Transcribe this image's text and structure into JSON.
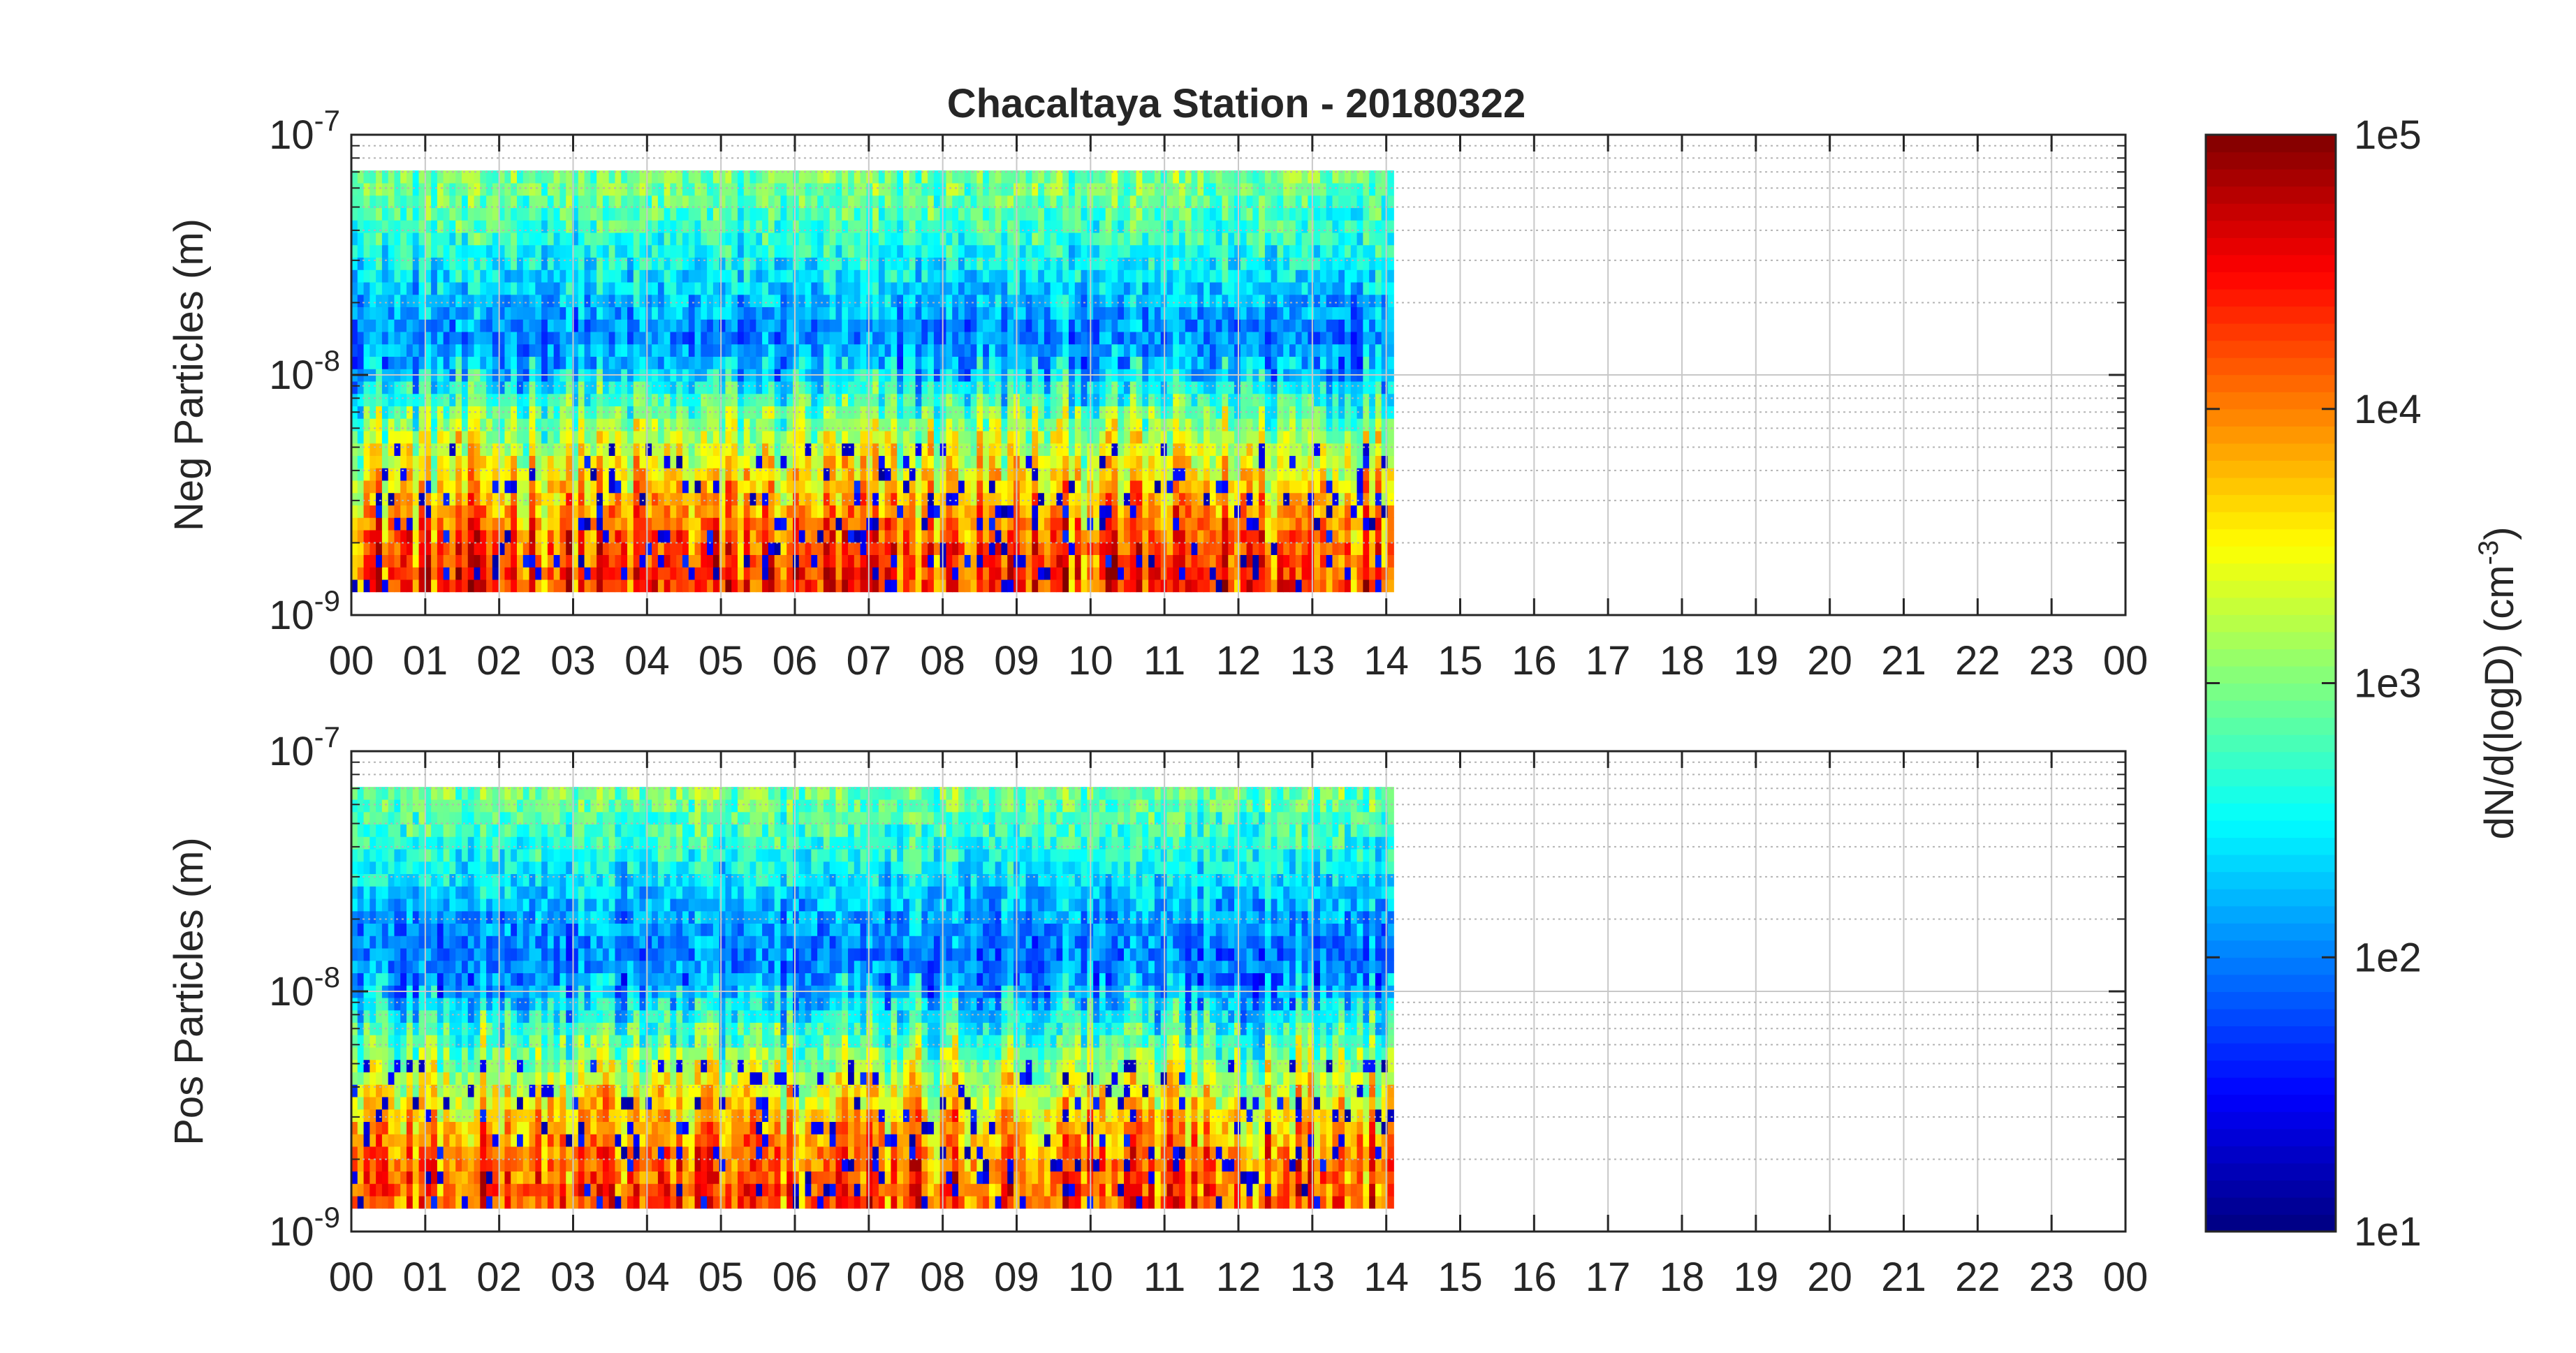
{
  "figure": {
    "title": "Chacaltaya Station - 20180322"
  },
  "colors": {
    "background": "#ffffff",
    "axis": "#262626",
    "grid_major": "#c8c8c8",
    "grid_minor": "#b4b4b4",
    "colormap": "jet"
  },
  "chart_data": [
    {
      "type": "heatmap",
      "ylabel": "Neg Particles (m)",
      "xlabel": "",
      "x_tick_labels": [
        "00",
        "01",
        "02",
        "03",
        "04",
        "05",
        "06",
        "07",
        "08",
        "09",
        "10",
        "11",
        "12",
        "13",
        "14",
        "15",
        "16",
        "17",
        "18",
        "19",
        "20",
        "21",
        "22",
        "23",
        "00"
      ],
      "xlim_hours": [
        0,
        24
      ],
      "data_extent_hours": [
        0,
        14.1
      ],
      "yscale": "log",
      "ylim_m": [
        1e-09,
        1e-07
      ],
      "data_extent_m": [
        1.25e-09,
        7.1e-08
      ],
      "y_tick_labels": [
        {
          "base": "10",
          "exp": "-7"
        },
        {
          "base": "10",
          "exp": "-8"
        },
        {
          "base": "10",
          "exp": "-9"
        }
      ],
      "grid": true,
      "description_profile_log10": [
        {
          "diameter_m": 1.4e-09,
          "dNdlogD": 20000
        },
        {
          "diameter_m": 2e-09,
          "dNdlogD": 15000
        },
        {
          "diameter_m": 3e-09,
          "dNdlogD": 6000
        },
        {
          "diameter_m": 4.5e-09,
          "dNdlogD": 2500
        },
        {
          "diameter_m": 7e-09,
          "dNdlogD": 800
        },
        {
          "diameter_m": 1e-08,
          "dNdlogD": 200
        },
        {
          "diameter_m": 1.5e-08,
          "dNdlogD": 100
        },
        {
          "diameter_m": 2.5e-08,
          "dNdlogD": 250
        },
        {
          "diameter_m": 4e-08,
          "dNdlogD": 500
        },
        {
          "diameter_m": 6.5e-08,
          "dNdlogD": 900
        }
      ]
    },
    {
      "type": "heatmap",
      "ylabel": "Pos Particles (m)",
      "xlabel": "",
      "x_tick_labels": [
        "00",
        "01",
        "02",
        "03",
        "04",
        "05",
        "06",
        "07",
        "08",
        "09",
        "10",
        "11",
        "12",
        "13",
        "14",
        "15",
        "16",
        "17",
        "18",
        "19",
        "20",
        "21",
        "22",
        "23",
        "00"
      ],
      "xlim_hours": [
        0,
        24
      ],
      "data_extent_hours": [
        0,
        14.1
      ],
      "yscale": "log",
      "ylim_m": [
        1e-09,
        1e-07
      ],
      "data_extent_m": [
        1.25e-09,
        7.1e-08
      ],
      "y_tick_labels": [
        {
          "base": "10",
          "exp": "-7"
        },
        {
          "base": "10",
          "exp": "-8"
        },
        {
          "base": "10",
          "exp": "-9"
        }
      ],
      "grid": true,
      "description_profile_log10": [
        {
          "diameter_m": 1.4e-09,
          "dNdlogD": 15000
        },
        {
          "diameter_m": 2e-09,
          "dNdlogD": 12000
        },
        {
          "diameter_m": 3e-09,
          "dNdlogD": 5000
        },
        {
          "diameter_m": 4.5e-09,
          "dNdlogD": 1800
        },
        {
          "diameter_m": 7e-09,
          "dNdlogD": 500
        },
        {
          "diameter_m": 1e-08,
          "dNdlogD": 150
        },
        {
          "diameter_m": 1.5e-08,
          "dNdlogD": 90
        },
        {
          "diameter_m": 2.5e-08,
          "dNdlogD": 200
        },
        {
          "diameter_m": 4e-08,
          "dNdlogD": 450
        },
        {
          "diameter_m": 6.5e-08,
          "dNdlogD": 850
        }
      ]
    }
  ],
  "colorbar": {
    "label": "dN/d(logD) (cm",
    "label_exp": "-3",
    "label_close": ")",
    "scale": "log",
    "range": [
      10,
      100000
    ],
    "tick_labels": [
      "1e5",
      "1e4",
      "1e3",
      "1e2",
      "1e1"
    ]
  }
}
